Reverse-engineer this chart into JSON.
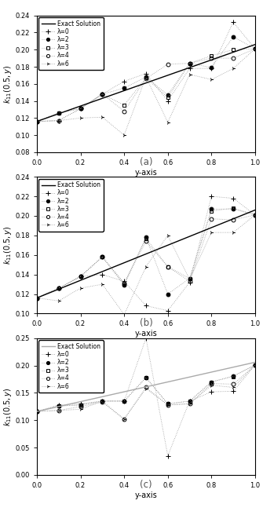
{
  "exact_x": [
    0.0,
    0.1,
    0.2,
    0.3,
    0.4,
    0.5,
    0.6,
    0.7,
    0.8,
    0.9,
    1.0
  ],
  "exact_y": [
    0.116,
    0.125,
    0.134,
    0.143,
    0.152,
    0.161,
    0.17,
    0.179,
    0.188,
    0.197,
    0.206
  ],
  "subplot_a": {
    "ylim": [
      0.08,
      0.24
    ],
    "yticks": [
      0.08,
      0.1,
      0.12,
      0.14,
      0.16,
      0.18,
      0.2,
      0.22,
      0.24
    ],
    "xlim": [
      0.0,
      1.0
    ],
    "xticks": [
      0.0,
      0.2,
      0.4,
      0.6,
      0.8,
      1.0
    ],
    "exact_line_color": "black",
    "lambda0": {
      "x": [
        0.0,
        0.1,
        0.2,
        0.3,
        0.4,
        0.5,
        0.6,
        0.7,
        0.8,
        0.9,
        1.0
      ],
      "y": [
        0.116,
        0.117,
        0.131,
        0.148,
        0.163,
        0.172,
        0.14,
        0.178,
        0.178,
        0.232,
        0.201
      ]
    },
    "lambda2": {
      "x": [
        0.0,
        0.1,
        0.2,
        0.3,
        0.4,
        0.5,
        0.6,
        0.7,
        0.8,
        0.9,
        1.0
      ],
      "y": [
        0.116,
        0.126,
        0.131,
        0.148,
        0.155,
        0.168,
        0.147,
        0.184,
        0.179,
        0.215,
        0.201
      ]
    },
    "lambda3": {
      "x": [
        0.0,
        0.1,
        0.2,
        0.3,
        0.4,
        0.5,
        0.6,
        0.7,
        0.8,
        0.9,
        1.0
      ],
      "y": [
        0.116,
        0.126,
        0.131,
        0.148,
        0.135,
        0.167,
        0.144,
        0.184,
        0.193,
        0.2,
        0.201
      ]
    },
    "lambda4": {
      "x": [
        0.0,
        0.1,
        0.2,
        0.3,
        0.4,
        0.5,
        0.6,
        0.7,
        0.8,
        0.9,
        1.0
      ],
      "y": [
        0.116,
        0.117,
        0.131,
        0.148,
        0.128,
        0.166,
        0.183,
        0.184,
        0.19,
        0.19,
        0.201
      ]
    },
    "lambda6": {
      "x": [
        0.0,
        0.1,
        0.2,
        0.3,
        0.4,
        0.5,
        0.6,
        0.7,
        0.8,
        0.9,
        1.0
      ],
      "y": [
        0.116,
        0.117,
        0.12,
        0.121,
        0.1,
        0.168,
        0.115,
        0.171,
        0.165,
        0.178,
        0.201
      ]
    }
  },
  "subplot_b": {
    "ylim": [
      0.1,
      0.24
    ],
    "yticks": [
      0.1,
      0.12,
      0.14,
      0.16,
      0.18,
      0.2,
      0.22,
      0.24
    ],
    "xlim": [
      0.0,
      1.0
    ],
    "xticks": [
      0.0,
      0.2,
      0.4,
      0.6,
      0.8,
      1.0
    ],
    "exact_line_color": "black",
    "lambda0": {
      "x": [
        0.0,
        0.1,
        0.2,
        0.3,
        0.4,
        0.5,
        0.6,
        0.7,
        0.8,
        0.9,
        1.0
      ],
      "y": [
        0.116,
        0.126,
        0.138,
        0.14,
        0.133,
        0.108,
        0.103,
        0.132,
        0.22,
        0.218,
        0.201
      ]
    },
    "lambda2": {
      "x": [
        0.0,
        0.1,
        0.2,
        0.3,
        0.4,
        0.5,
        0.6,
        0.7,
        0.8,
        0.9,
        1.0
      ],
      "y": [
        0.116,
        0.126,
        0.138,
        0.158,
        0.129,
        0.178,
        0.12,
        0.136,
        0.207,
        0.207,
        0.201
      ]
    },
    "lambda3": {
      "x": [
        0.0,
        0.1,
        0.2,
        0.3,
        0.4,
        0.5,
        0.6,
        0.7,
        0.8,
        0.9,
        1.0
      ],
      "y": [
        0.116,
        0.126,
        0.138,
        0.158,
        0.131,
        0.177,
        0.148,
        0.136,
        0.205,
        0.208,
        0.201
      ]
    },
    "lambda4": {
      "x": [
        0.0,
        0.1,
        0.2,
        0.3,
        0.4,
        0.5,
        0.6,
        0.7,
        0.8,
        0.9,
        1.0
      ],
      "y": [
        0.116,
        0.126,
        0.138,
        0.158,
        0.131,
        0.174,
        0.148,
        0.133,
        0.197,
        0.196,
        0.201
      ]
    },
    "lambda6": {
      "x": [
        0.0,
        0.1,
        0.2,
        0.3,
        0.4,
        0.5,
        0.6,
        0.7,
        0.8,
        0.9,
        1.0
      ],
      "y": [
        0.116,
        0.113,
        0.126,
        0.13,
        0.099,
        0.148,
        0.18,
        0.135,
        0.183,
        0.183,
        0.201
      ]
    }
  },
  "subplot_c": {
    "ylim": [
      0.0,
      0.25
    ],
    "yticks": [
      0.0,
      0.05,
      0.1,
      0.15,
      0.2,
      0.25
    ],
    "xlim": [
      0.0,
      1.0
    ],
    "xticks": [
      0.0,
      0.2,
      0.4,
      0.6,
      0.8,
      1.0
    ],
    "exact_line_color": "#aaaaaa",
    "lambda0": {
      "x": [
        0.0,
        0.1,
        0.2,
        0.3,
        0.4,
        0.5,
        0.6,
        0.7,
        0.8,
        0.9,
        1.0
      ],
      "y": [
        0.116,
        0.128,
        0.13,
        0.135,
        0.135,
        0.25,
        0.035,
        0.135,
        0.152,
        0.153,
        0.201
      ]
    },
    "lambda2": {
      "x": [
        0.0,
        0.1,
        0.2,
        0.3,
        0.4,
        0.5,
        0.6,
        0.7,
        0.8,
        0.9,
        1.0
      ],
      "y": [
        0.116,
        0.126,
        0.128,
        0.135,
        0.135,
        0.178,
        0.13,
        0.135,
        0.17,
        0.181,
        0.201
      ]
    },
    "lambda3": {
      "x": [
        0.0,
        0.1,
        0.2,
        0.3,
        0.4,
        0.5,
        0.6,
        0.7,
        0.8,
        0.9,
        1.0
      ],
      "y": [
        0.116,
        0.126,
        0.128,
        0.135,
        0.135,
        0.178,
        0.13,
        0.135,
        0.17,
        0.18,
        0.201
      ]
    },
    "lambda4": {
      "x": [
        0.0,
        0.1,
        0.2,
        0.3,
        0.4,
        0.5,
        0.6,
        0.7,
        0.8,
        0.9,
        1.0
      ],
      "y": [
        0.116,
        0.118,
        0.125,
        0.133,
        0.102,
        0.16,
        0.128,
        0.13,
        0.167,
        0.166,
        0.201
      ]
    },
    "lambda6": {
      "x": [
        0.0,
        0.1,
        0.2,
        0.3,
        0.4,
        0.5,
        0.6,
        0.7,
        0.8,
        0.9,
        1.0
      ],
      "y": [
        0.116,
        0.118,
        0.12,
        0.135,
        0.102,
        0.158,
        0.128,
        0.13,
        0.164,
        0.16,
        0.201
      ]
    }
  },
  "series": [
    {
      "key": "lambda0",
      "marker": "+",
      "mfc": "black",
      "label": "λ=0"
    },
    {
      "key": "lambda2",
      "marker": "o",
      "mfc": "black",
      "label": "λ=2"
    },
    {
      "key": "lambda3",
      "marker": "s",
      "mfc": "none",
      "label": "λ=3"
    },
    {
      "key": "lambda4",
      "marker": "o",
      "mfc": "none",
      "label": "λ=4"
    },
    {
      "key": "lambda6",
      "marker": "4",
      "mfc": "none",
      "label": "λ=6"
    }
  ],
  "dot_line_color": "#999999",
  "legend_fontsize": 5.5,
  "tick_fontsize": 6.0,
  "label_fontsize": 7.0,
  "sublabel_fontsize": 8.5
}
